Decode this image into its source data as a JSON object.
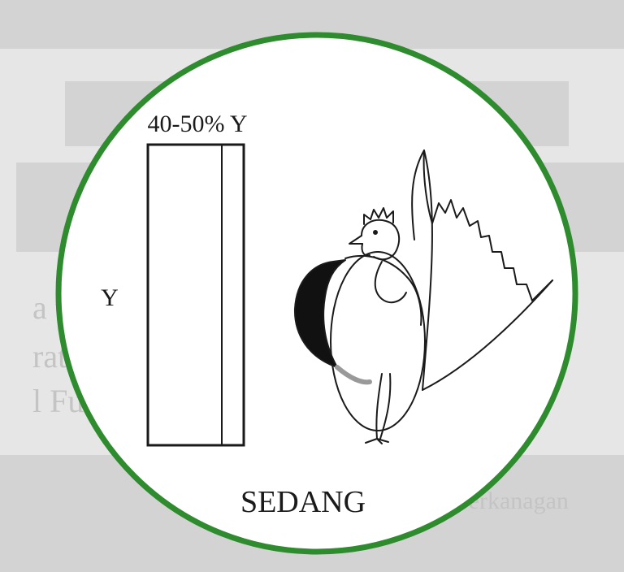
{
  "bin_label": "40-50% Y",
  "axis_label": "Y",
  "caption": "SEDANG",
  "colors": {
    "ring": "#2e8b2e",
    "ink": "#1a1a1a",
    "disc": "#ffffff",
    "background": "#e6e6e6"
  }
}
